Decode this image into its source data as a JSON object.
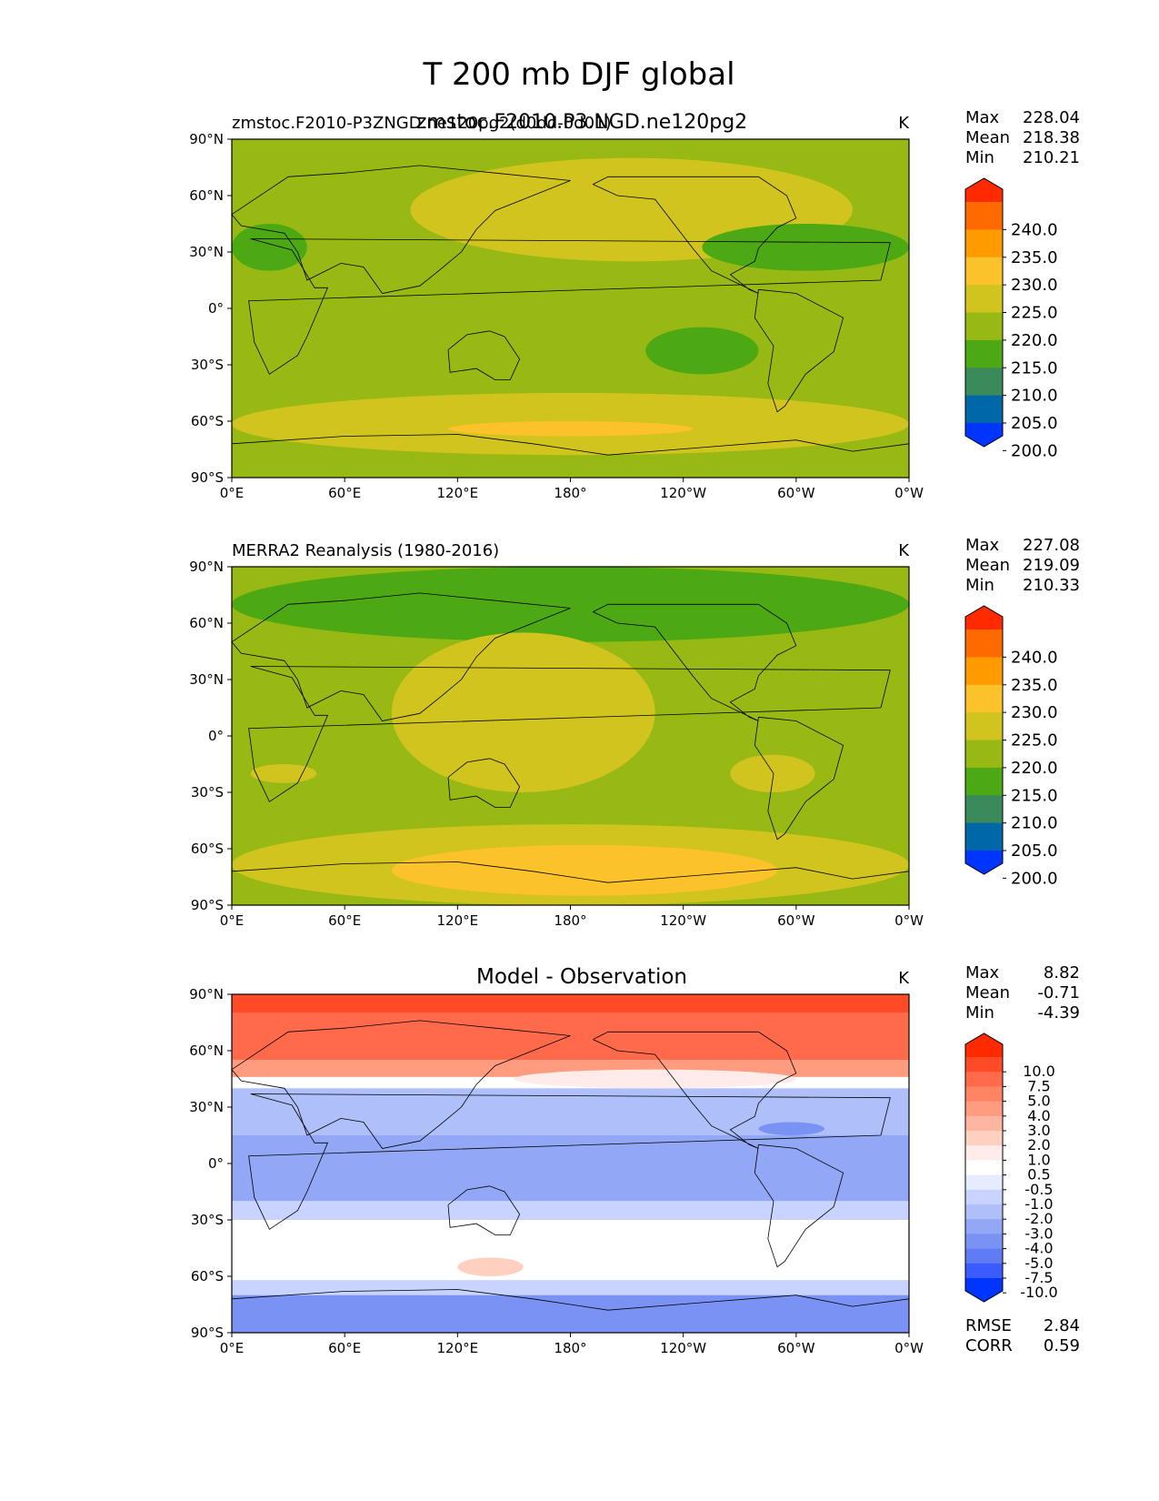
{
  "figure": {
    "suptitle": "T 200 mb DJF global"
  },
  "chart_data": [
    {
      "type": "heatmap",
      "panel": "test",
      "title_left": "zmstoc.F2010-P3ZNGD.ne120pg2(d0dd-0d01)",
      "title_center": "zmstoc.F2010.P3.NGD.ne120pg2",
      "units": "K",
      "stats": {
        "max_label": "Max",
        "max": "228.04",
        "mean_label": "Mean",
        "mean": "218.38",
        "min_label": "Min",
        "min": "210.21"
      },
      "x_ticks": [
        "0°E",
        "60°E",
        "120°E",
        "180°",
        "120°W",
        "60°W",
        "0°W"
      ],
      "y_ticks": [
        "90°N",
        "60°N",
        "30°N",
        "0°",
        "30°S",
        "60°S",
        "90°S"
      ],
      "xlim": [
        0,
        360
      ],
      "ylim": [
        -90,
        90
      ],
      "colorbar": {
        "levels": [
          "240.0",
          "235.0",
          "230.0",
          "225.0",
          "220.0",
          "215.0",
          "210.0",
          "205.0",
          "200.0"
        ],
        "colors": [
          "#ff2a00",
          "#ff6a00",
          "#ff9a00",
          "#fcc22a",
          "#d2c41e",
          "#98b914",
          "#4ca813",
          "#3a8a5c",
          "#0068a8",
          "#0034ff"
        ]
      },
      "base_color": "#98b914",
      "regions": [
        {
          "level": "225-230",
          "color": "#fcc22a",
          "lon_range": [
            125,
            205
          ],
          "lat_range": [
            40,
            68
          ]
        },
        {
          "level": "220-225",
          "color": "#d2c41e",
          "lon_range": [
            95,
            330
          ],
          "lat_range": [
            25,
            80
          ]
        },
        {
          "level": "210-215",
          "color": "#4ca813",
          "lon_range": [
            250,
            360
          ],
          "lat_range": [
            20,
            45
          ]
        },
        {
          "level": "210-215",
          "color": "#4ca813",
          "lon_range": [
            0,
            40
          ],
          "lat_range": [
            20,
            45
          ]
        },
        {
          "level": "210-215",
          "color": "#4ca813",
          "lon_range": [
            220,
            280
          ],
          "lat_range": [
            -35,
            -10
          ]
        },
        {
          "level": "220-225",
          "color": "#d2c41e",
          "lon_range": [
            0,
            360
          ],
          "lat_range": [
            -78,
            -45
          ]
        },
        {
          "level": "225-230",
          "color": "#fcc22a",
          "lon_range": [
            115,
            245
          ],
          "lat_range": [
            -68,
            -60
          ]
        }
      ]
    },
    {
      "type": "heatmap",
      "panel": "reference",
      "title_left": "MERRA2 Reanalysis (1980-2016)",
      "title_center": "",
      "units": "K",
      "stats": {
        "max_label": "Max",
        "max": "227.08",
        "mean_label": "Mean",
        "mean": "219.09",
        "min_label": "Min",
        "min": "210.33"
      },
      "x_ticks": [
        "0°E",
        "60°E",
        "120°E",
        "180°",
        "120°W",
        "60°W",
        "0°W"
      ],
      "y_ticks": [
        "90°N",
        "60°N",
        "30°N",
        "0°",
        "30°S",
        "60°S",
        "90°S"
      ],
      "xlim": [
        0,
        360
      ],
      "ylim": [
        -90,
        90
      ],
      "colorbar": {
        "levels": [
          "240.0",
          "235.0",
          "230.0",
          "225.0",
          "220.0",
          "215.0",
          "210.0",
          "205.0",
          "200.0"
        ],
        "colors": [
          "#ff2a00",
          "#ff6a00",
          "#ff9a00",
          "#fcc22a",
          "#d2c41e",
          "#98b914",
          "#4ca813",
          "#3a8a5c",
          "#0068a8",
          "#0034ff"
        ]
      },
      "base_color": "#98b914",
      "regions": [
        {
          "level": "210-215",
          "color": "#4ca813",
          "lon_range": [
            0,
            360
          ],
          "lat_range": [
            50,
            90
          ]
        },
        {
          "level": "220-225",
          "color": "#d2c41e",
          "lon_range": [
            85,
            225
          ],
          "lat_range": [
            -30,
            55
          ]
        },
        {
          "level": "220-225",
          "color": "#d2c41e",
          "lon_range": [
            265,
            310
          ],
          "lat_range": [
            -30,
            -10
          ]
        },
        {
          "level": "220-225",
          "color": "#d2c41e",
          "lon_range": [
            10,
            45
          ],
          "lat_range": [
            -25,
            -15
          ]
        },
        {
          "level": "220-225",
          "color": "#d2c41e",
          "lon_range": [
            0,
            360
          ],
          "lat_range": [
            -90,
            -47
          ]
        },
        {
          "level": "225-230",
          "color": "#fcc22a",
          "lon_range": [
            85,
            290
          ],
          "lat_range": [
            -85,
            -58
          ]
        }
      ]
    },
    {
      "type": "heatmap",
      "panel": "difference",
      "title_left": "",
      "title_center": "Model - Observation",
      "units": "K",
      "stats": {
        "max_label": "Max",
        "max": "8.82",
        "mean_label": "Mean",
        "mean": "-0.71",
        "min_label": "Min",
        "min": "-4.39"
      },
      "metrics": {
        "rmse_label": "RMSE",
        "rmse": "2.84",
        "corr_label": "CORR",
        "corr": "0.59"
      },
      "x_ticks": [
        "0°E",
        "60°E",
        "120°E",
        "180°",
        "120°W",
        "60°W",
        "0°W"
      ],
      "y_ticks": [
        "90°N",
        "60°N",
        "30°N",
        "0°",
        "30°S",
        "60°S",
        "90°S"
      ],
      "xlim": [
        0,
        360
      ],
      "ylim": [
        -90,
        90
      ],
      "colorbar": {
        "levels": [
          "10.0",
          "7.5",
          "5.0",
          "4.0",
          "3.0",
          "2.0",
          "1.0",
          "0.5",
          "-0.5",
          "-1.0",
          "-2.0",
          "-3.0",
          "-4.0",
          "-5.0",
          "-7.5",
          "-10.0"
        ],
        "colors": [
          "#ff2a00",
          "#ff4a28",
          "#ff6a4a",
          "#ff8464",
          "#ff9c80",
          "#ffb6a0",
          "#ffd0c0",
          "#ffecea",
          "#ffffff",
          "#e6ecff",
          "#c8d4ff",
          "#aebff9",
          "#92a8f6",
          "#7a92f4",
          "#5f7cf4",
          "#3a5cff",
          "#0034ff"
        ]
      },
      "zonal_bands": [
        {
          "value": 8.5,
          "color": "#ff4a28",
          "lat_range": [
            80,
            90
          ]
        },
        {
          "value": 6,
          "color": "#ff6a4a",
          "lat_range": [
            55,
            80
          ]
        },
        {
          "value": 3.5,
          "color": "#ff9c80",
          "lat_range": [
            46,
            55
          ]
        },
        {
          "value": 0,
          "color": "#ffffff",
          "lat_range": [
            40,
            46
          ]
        },
        {
          "value": -2.5,
          "color": "#aebff9",
          "lat_range": [
            15,
            40
          ]
        },
        {
          "value": -2,
          "color": "#92a8f6",
          "lat_range": [
            -20,
            15
          ]
        },
        {
          "value": -1.5,
          "color": "#c8d4ff",
          "lat_range": [
            -30,
            -20
          ]
        },
        {
          "value": 0,
          "color": "#ffffff",
          "lat_range": [
            -62,
            -30
          ]
        },
        {
          "value": -1.5,
          "color": "#c8d4ff",
          "lat_range": [
            -70,
            -62
          ]
        },
        {
          "value": -3.5,
          "color": "#7a92f4",
          "lat_range": [
            -90,
            -70
          ]
        }
      ],
      "regions": [
        {
          "level": "0.5-1.0",
          "color": "#ffd0c0",
          "lon_range": [
            120,
            155
          ],
          "lat_range": [
            -60,
            -50
          ]
        },
        {
          "level": "-4.0--5.0",
          "color": "#7a92f4",
          "lon_range": [
            280,
            315
          ],
          "lat_range": [
            15,
            22
          ]
        },
        {
          "level": "0.5-1.0",
          "color": "#ffecea",
          "lon_range": [
            150,
            300
          ],
          "lat_range": [
            40,
            50
          ]
        }
      ]
    }
  ]
}
